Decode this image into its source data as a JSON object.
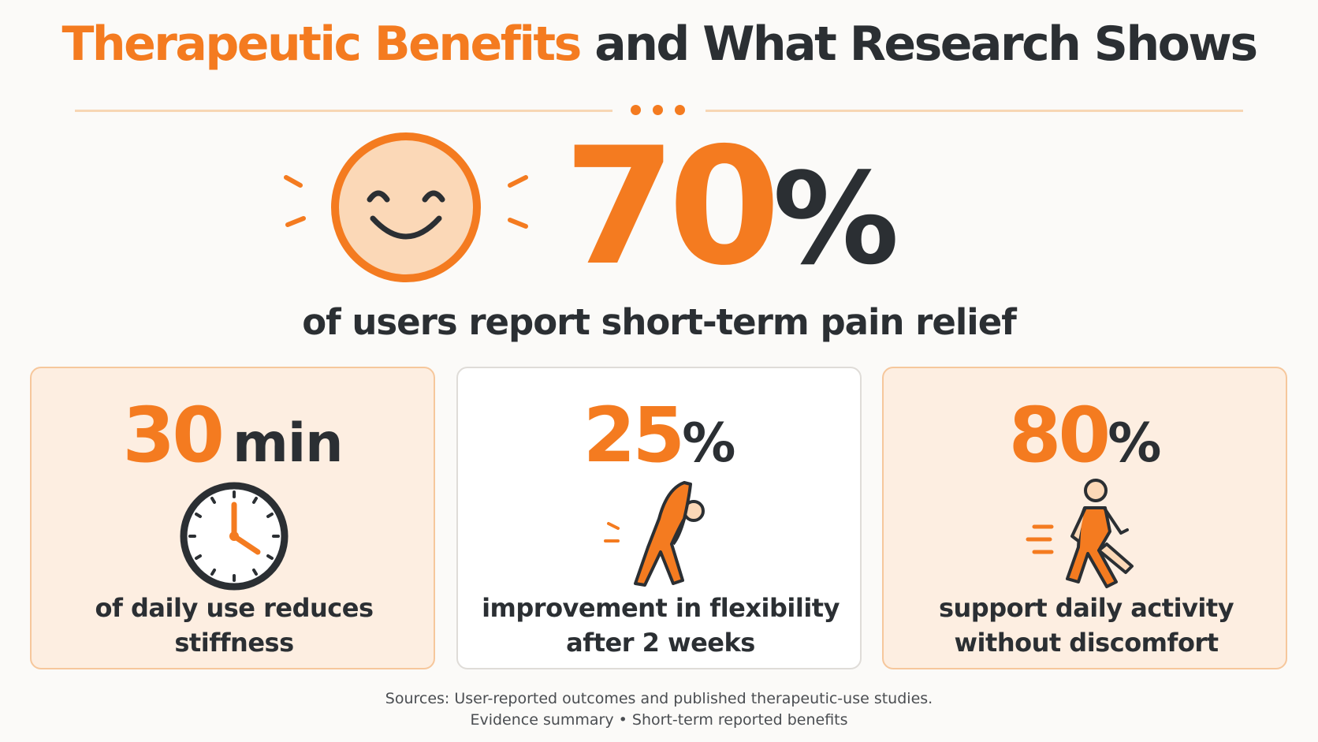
{
  "title": {
    "accent": "Therapeutic Benefits",
    "rest": "and What Research Shows"
  },
  "hero": {
    "value": "70",
    "unit": "%",
    "caption": "of users report short-term pain relief",
    "icon": "smiley-face-icon"
  },
  "cards": [
    {
      "value": "30",
      "unit": "min",
      "line1": "of daily use reduces",
      "line2": "stiffness",
      "icon": "clock-icon"
    },
    {
      "value": "25",
      "unit": "%",
      "line1": "improvement in flexibility",
      "line2": "after 2 weeks",
      "icon": "stretching-person-icon"
    },
    {
      "value": "80",
      "unit": "%",
      "line1": "support daily activity",
      "line2": "without discomfort",
      "icon": "walking-person-icon"
    }
  ],
  "sources": {
    "line1": "Sources: User-reported outcomes and published therapeutic-use studies.",
    "line2": "Evidence summary • Short-term reported benefits"
  },
  "colors": {
    "accent": "#f47b20",
    "dark": "#2b2f33",
    "card_warm_bg": "#fdeee1",
    "card_warm_border": "#f6c79c",
    "card_plain_bg": "#ffffff"
  }
}
